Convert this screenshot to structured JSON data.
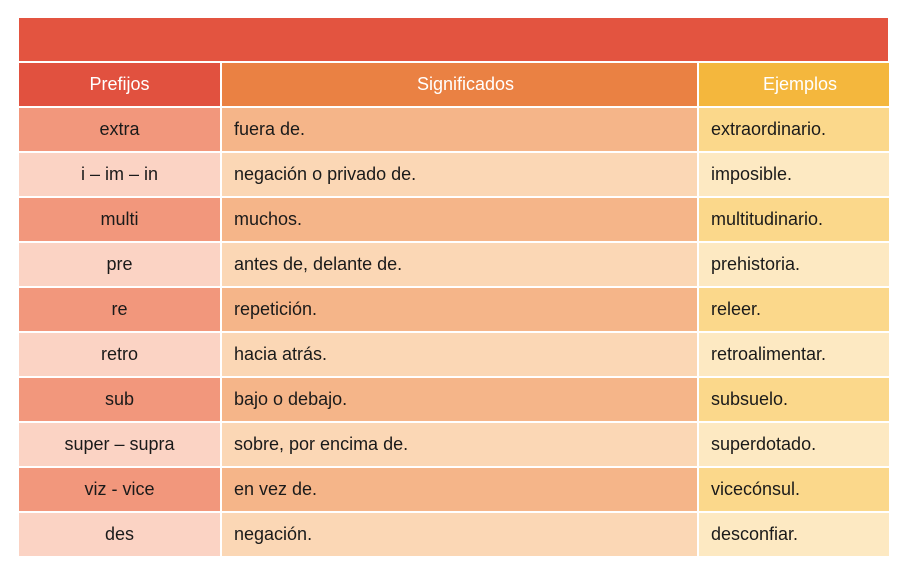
{
  "headers": {
    "prefijos": "Prefijos",
    "significados": "Significados",
    "ejemplos": "Ejemplos"
  },
  "rows": [
    {
      "prefijo": "extra",
      "significado": " fuera de.",
      "ejemplo": "extraordinario."
    },
    {
      "prefijo": "i – im – in",
      "significado": "negación o privado de.",
      "ejemplo": "imposible."
    },
    {
      "prefijo": "multi",
      "significado": "muchos.",
      "ejemplo": "multitudinario."
    },
    {
      "prefijo": "pre",
      "significado": "antes de, delante de.",
      "ejemplo": "prehistoria."
    },
    {
      "prefijo": "re",
      "significado": "repetición.",
      "ejemplo": "releer."
    },
    {
      "prefijo": "retro",
      "significado": "hacia atrás.",
      "ejemplo": "retroalimentar."
    },
    {
      "prefijo": "sub",
      "significado": "bajo o debajo.",
      "ejemplo": "subsuelo."
    },
    {
      "prefijo": "super – supra",
      "significado": "sobre, por encima de.",
      "ejemplo": "superdotado."
    },
    {
      "prefijo": "viz - vice",
      "significado": "en vez de.",
      "ejemplo": "vicecónsul."
    },
    {
      "prefijo": "des",
      "significado": "negación.",
      "ejemplo": "desconfiar."
    }
  ],
  "colors": {
    "title_band": "#e35440",
    "header_prefijos": "#e1513f",
    "header_significados": "#ea8143",
    "header_ejemplos": "#f4b73d",
    "odd_row": [
      "#f2977c",
      "#f5b589",
      "#fbd88b"
    ],
    "even_row": [
      "#fbd3c4",
      "#fbd7b5",
      "#fde9c2"
    ]
  }
}
